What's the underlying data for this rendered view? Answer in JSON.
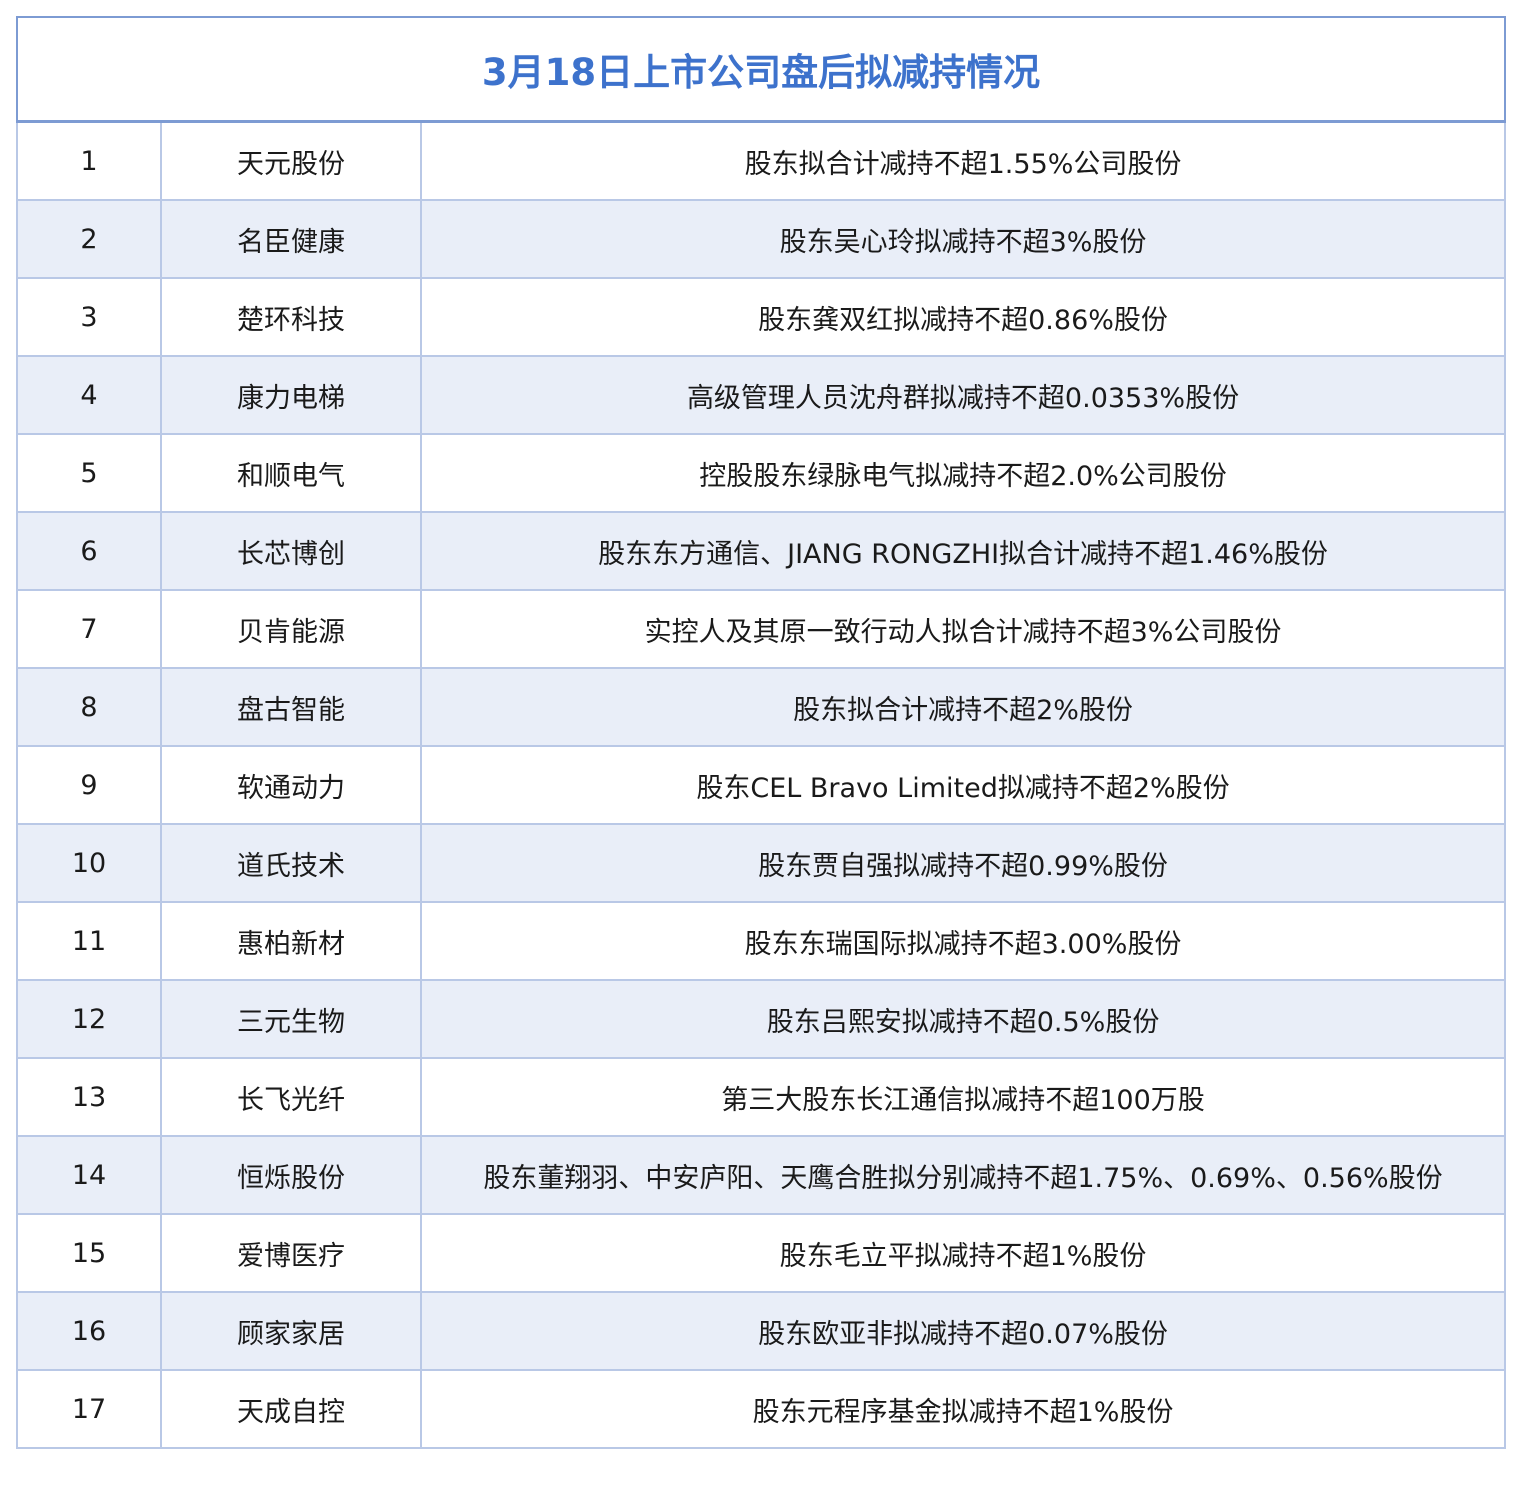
{
  "table": {
    "title": "3月18日上市公司盘后拟减持情况",
    "rows": [
      [
        "1",
        "天元股份",
        "股东拟合计减持不超1.55%公司股份"
      ],
      [
        "2",
        "名臣健康",
        "股东吴心玲拟减持不超3%股份"
      ],
      [
        "3",
        "楚环科技",
        "股东龚双红拟减持不超0.86%股份"
      ],
      [
        "4",
        "康力电梯",
        "高级管理人员沈舟群拟减持不超0.0353%股份"
      ],
      [
        "5",
        "和顺电气",
        "控股股东绿脉电气拟减持不超2.0%公司股份"
      ],
      [
        "6",
        "长芯博创",
        "股东东方通信、JIANG RONGZHI拟合计减持不超1.46%股份"
      ],
      [
        "7",
        "贝肯能源",
        "实控人及其原一致行动人拟合计减持不超3%公司股份"
      ],
      [
        "8",
        "盘古智能",
        "股东拟合计减持不超2%股份"
      ],
      [
        "9",
        "软通动力",
        "股东CEL Bravo Limited拟减持不超2%股份"
      ],
      [
        "10",
        "道氏技术",
        "股东贾自强拟减持不超0.99%股份"
      ],
      [
        "11",
        "惠柏新材",
        "股东东瑞国际拟减持不超3.00%股份"
      ],
      [
        "12",
        "三元生物",
        "股东吕熙安拟减持不超0.5%股份"
      ],
      [
        "13",
        "长飞光纤",
        "第三大股东长江通信拟减持不超100万股"
      ],
      [
        "14",
        "恒烁股份",
        "股东董翔羽、中安庐阳、天鹰合胜拟分别减持不超1.75%、0.69%、0.56%股份"
      ],
      [
        "15",
        "爱博医疗",
        "股东毛立平拟减持不超1%股份"
      ],
      [
        "16",
        "顾家家居",
        "股东欧亚非拟减持不超0.07%股份"
      ],
      [
        "17",
        "天成自控",
        "股东元程序基金拟减持不超1%股份"
      ]
    ]
  }
}
